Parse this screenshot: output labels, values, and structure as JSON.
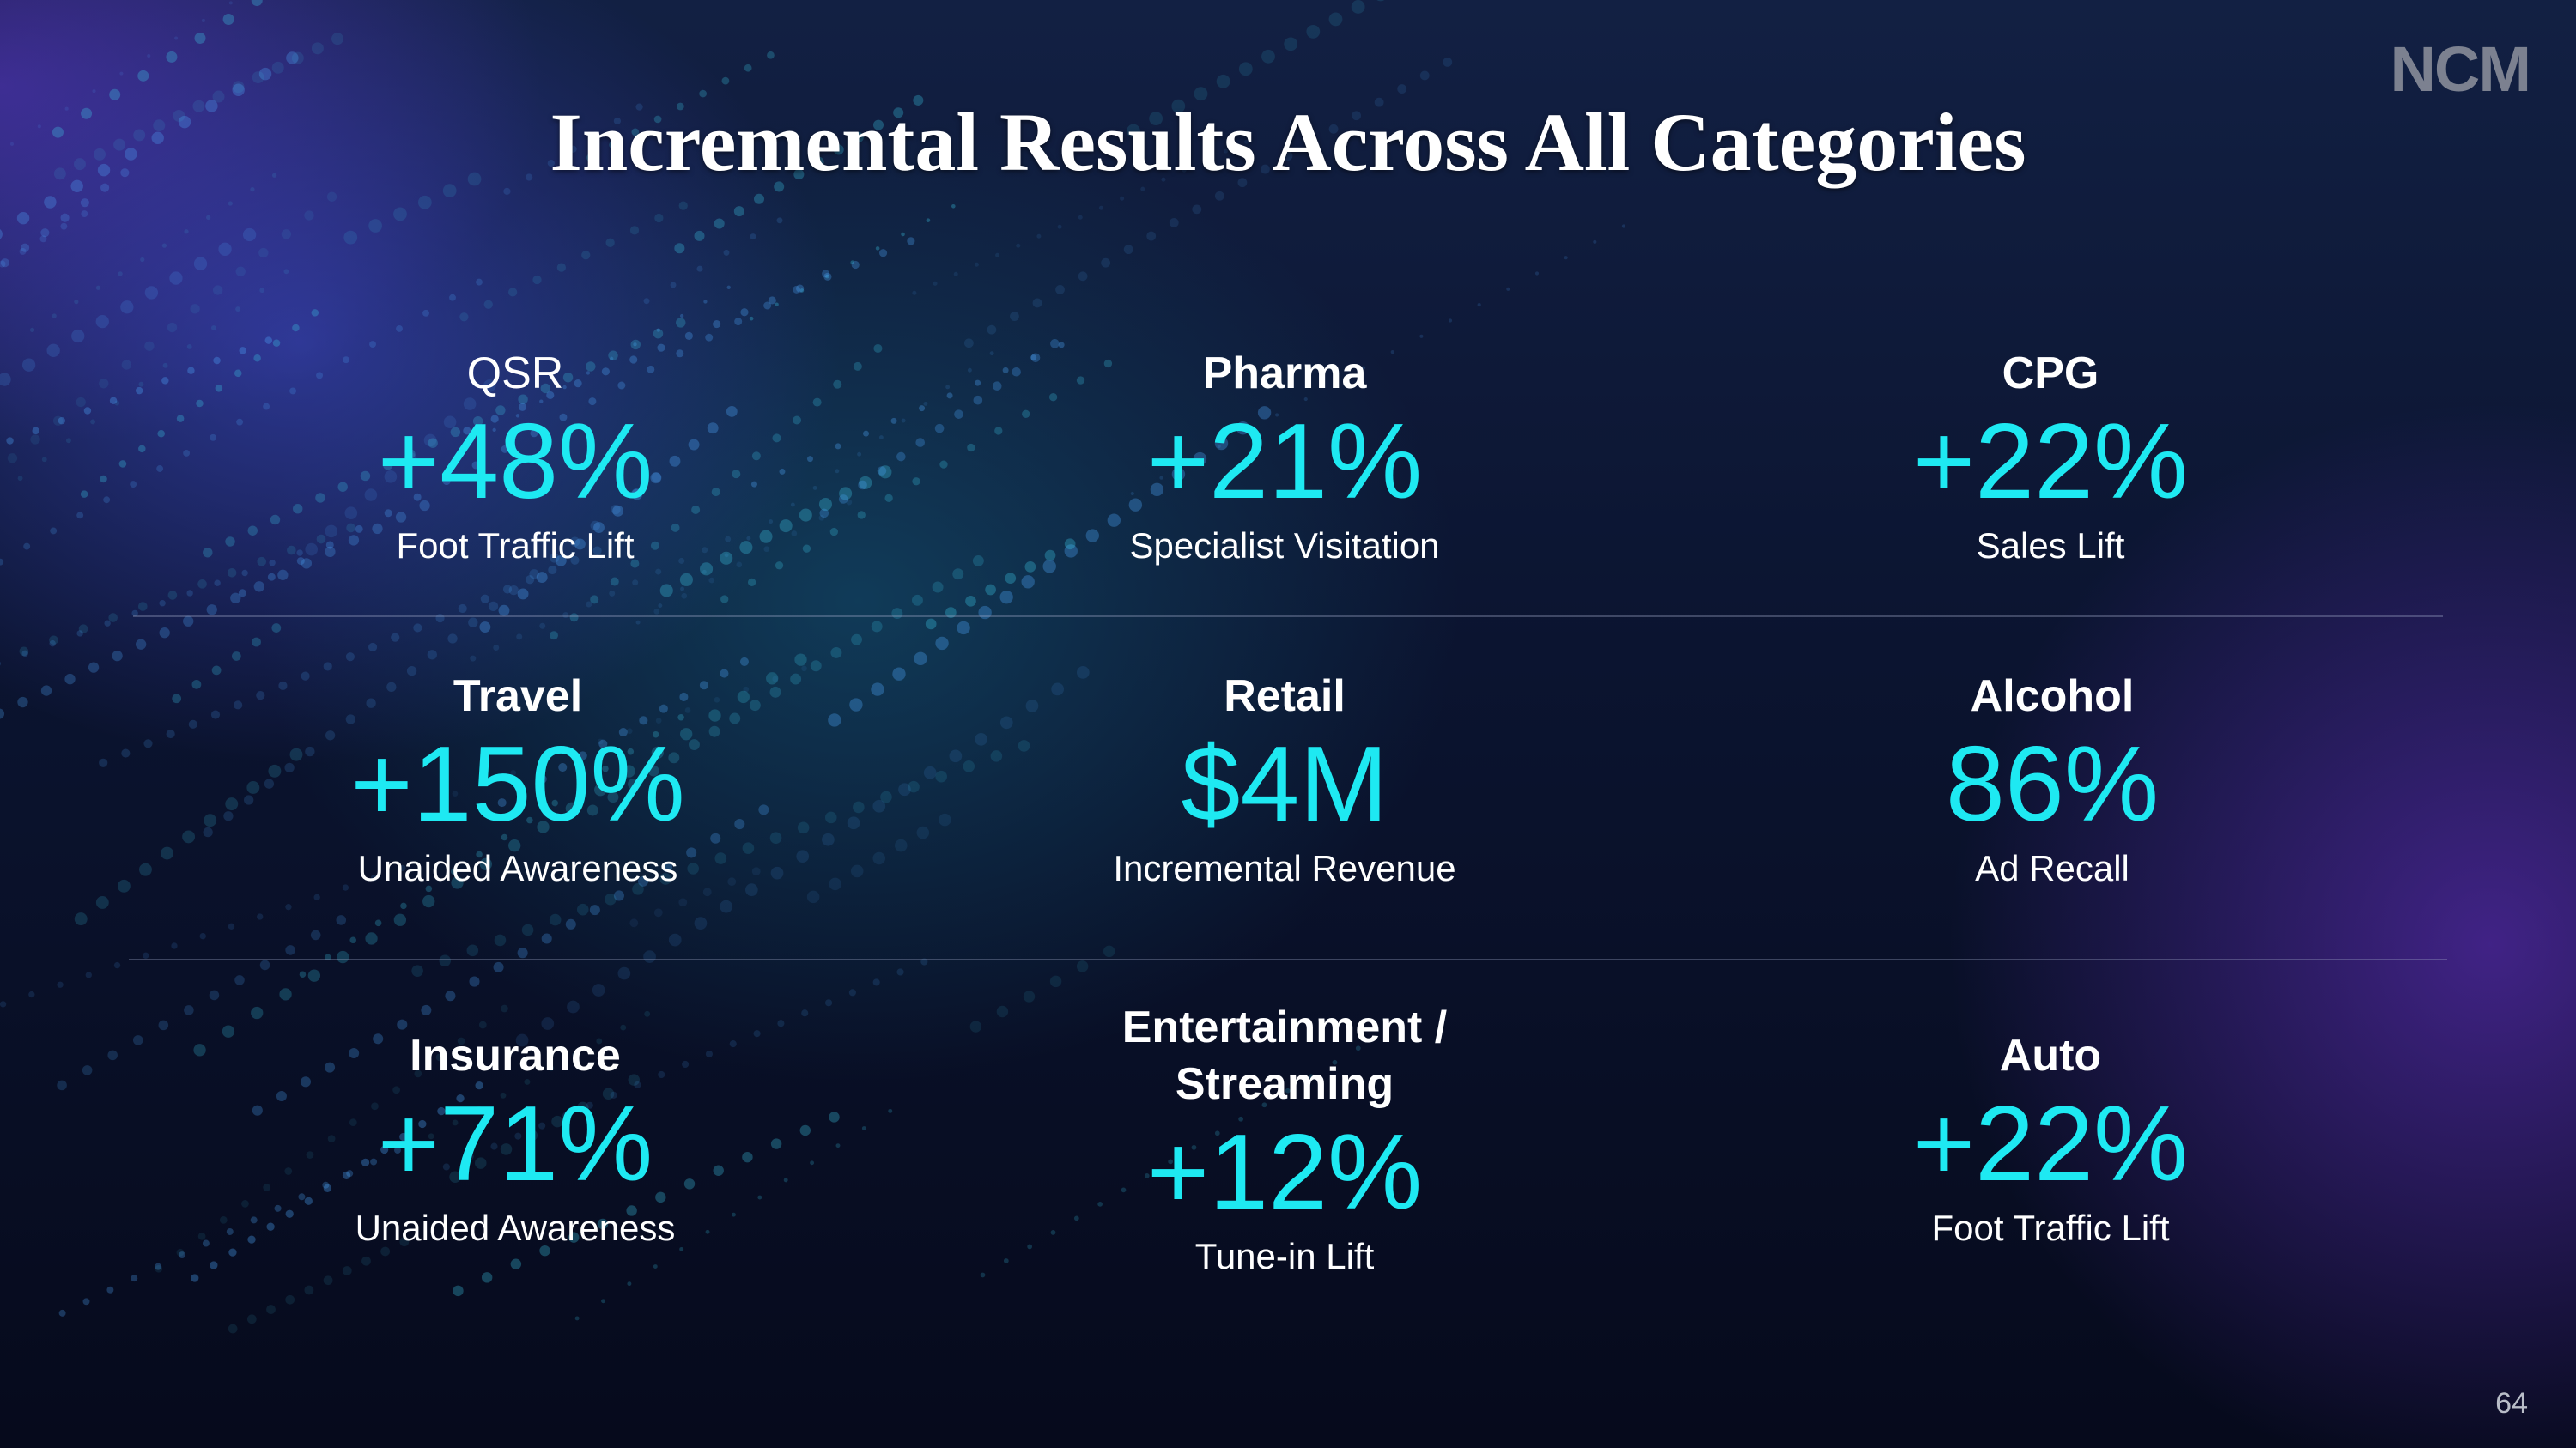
{
  "logo": "NCM",
  "title": "Incremental Results Across All Categories",
  "page_number": "64",
  "colors": {
    "accent": "#1ee9f2",
    "text": "#ffffff",
    "background": "#0b1430"
  },
  "cells": [
    {
      "category": "QSR",
      "metric": "+48%",
      "description": "Foot Traffic Lift"
    },
    {
      "category": "Pharma",
      "metric": "+21%",
      "description": "Specialist Visitation"
    },
    {
      "category": "CPG",
      "metric": "+22%",
      "description": "Sales Lift"
    },
    {
      "category": "Travel",
      "metric": "+150%",
      "description": "Unaided Awareness"
    },
    {
      "category": "Retail",
      "metric": "$4M",
      "description": "Incremental Revenue"
    },
    {
      "category": "Alcohol",
      "metric": "86%",
      "description": "Ad Recall"
    },
    {
      "category": "Insurance",
      "metric": "+71%",
      "description": "Unaided Awareness"
    },
    {
      "category_line1": "Entertainment /",
      "category_line2": "Streaming",
      "metric": "+12%",
      "description": "Tune-in Lift"
    },
    {
      "category": "Auto",
      "metric": "+22%",
      "description": "Foot Traffic Lift"
    }
  ]
}
